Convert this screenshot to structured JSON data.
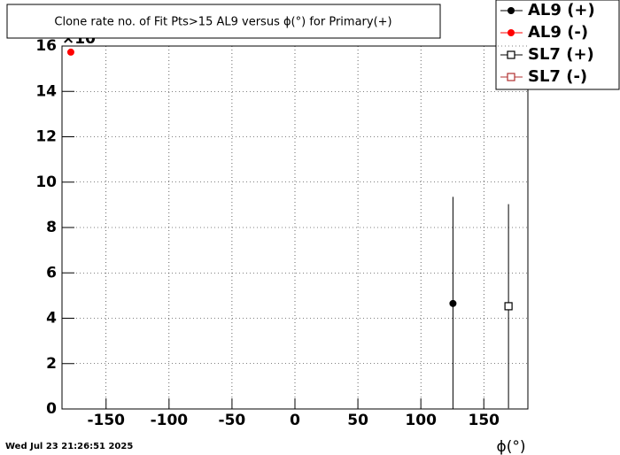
{
  "chart_data": {
    "type": "scatter",
    "title": "Clone rate no. of Fit Pts>15 AL9 versus ϕ(°) for Primary(+)",
    "y_multiplier": "×10",
    "x_label": "ϕ(°)",
    "timestamp": "Wed Jul 23 21:26:51 2025",
    "xlim": [
      -185,
      185
    ],
    "xticks": [
      -150,
      -100,
      -50,
      0,
      50,
      100,
      150
    ],
    "ylim": [
      0,
      16
    ],
    "yticks": [
      0,
      2,
      4,
      6,
      8,
      10,
      12,
      14,
      16
    ],
    "grid": true,
    "legend": "top-right",
    "series": [
      {
        "name": "AL9 (+)",
        "color": "#000000",
        "marker": "filled-circle",
        "x": [
          125.5
        ],
        "values": [
          4.65
        ],
        "errors": [
          4.7
        ]
      },
      {
        "name": "AL9 (-)",
        "color": "#ff0000",
        "marker": "filled-circle",
        "x": [
          -178
        ],
        "values": [
          15.73
        ],
        "errors": [
          0
        ]
      },
      {
        "name": "SL7 (+)",
        "color": "#000000",
        "marker": "open-square",
        "x": [
          169.6
        ],
        "values": [
          4.53
        ],
        "errors": [
          4.5
        ]
      },
      {
        "name": "SL7 (-)",
        "color": "#b03030",
        "marker": "open-square",
        "x": [],
        "values": [],
        "errors": []
      }
    ]
  }
}
